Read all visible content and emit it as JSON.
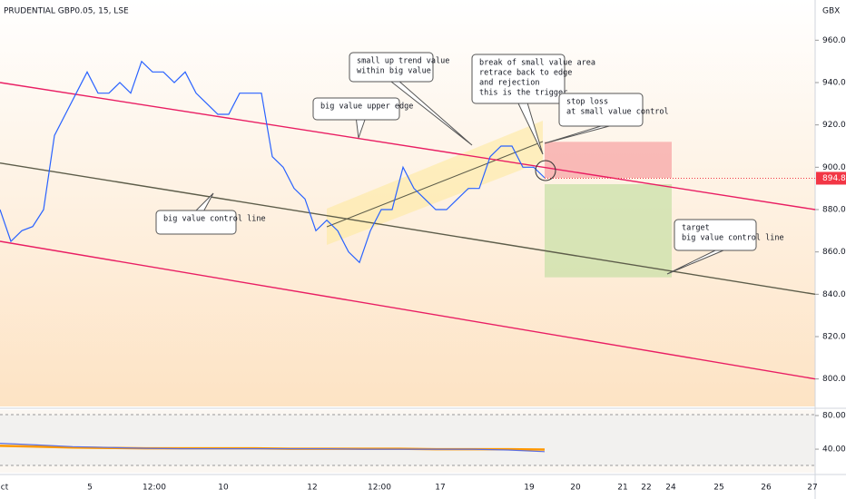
{
  "chart_data": [
    {
      "type": "line",
      "title": "PRUDENTIAL GBP0.05, 15, LSE",
      "unit": "GBX",
      "ylim": [
        787,
        979
      ],
      "yticks": [
        {
          "value": 960,
          "label": "960.0"
        },
        {
          "value": 940,
          "label": "940.0"
        },
        {
          "value": 920,
          "label": "920.0"
        },
        {
          "value": 900,
          "label": "900.0"
        },
        {
          "value": 880,
          "label": "880.0"
        },
        {
          "value": 860,
          "label": "860.0"
        },
        {
          "value": 840,
          "label": "840.0"
        },
        {
          "value": 820,
          "label": "820.0"
        },
        {
          "value": 800,
          "label": "800.0"
        }
      ],
      "xtick_labels": [
        "ct",
        "5",
        "12:00",
        "10",
        "12",
        "12:00",
        "17",
        "19",
        "20",
        "21",
        "22",
        "24",
        "25",
        "26",
        "27"
      ],
      "last_price": {
        "value": 894.8,
        "label": "894.8",
        "color": "#f23645"
      },
      "series": [
        {
          "color": "#2962ff",
          "values": [
            880,
            865,
            870,
            872,
            880,
            915,
            925,
            935,
            945,
            935,
            935,
            940,
            935,
            950,
            945,
            945,
            940,
            945,
            935,
            930,
            925,
            925,
            935,
            935,
            935,
            905,
            900,
            890,
            885,
            870,
            875,
            870,
            860,
            855,
            870,
            880,
            880,
            900,
            890,
            885,
            880,
            880,
            885,
            890,
            890,
            905,
            910,
            910,
            900,
            900,
            895
          ]
        }
      ],
      "trendlines": [
        {
          "color": "#e91e63",
          "values": [
            940,
            880
          ]
        },
        {
          "color": "#5d5d4a",
          "values": [
            902,
            840
          ]
        },
        {
          "color": "#e91e63",
          "values": [
            865,
            800
          ]
        }
      ],
      "zones": [
        {
          "color": "#f7a5a5",
          "values": [
            912,
            895
          ]
        },
        {
          "color": "#c9e0a8",
          "values": [
            892,
            848
          ]
        }
      ],
      "annotations": [
        [
          "big value control line"
        ],
        [
          "big value upper edge"
        ],
        [
          "small up trend value",
          "within big value"
        ],
        [
          "break of small value area",
          "retrace back to edge",
          "and rejection",
          "this is the trigger"
        ],
        [
          "stop loss",
          "at small value control"
        ],
        [
          "target",
          "big value control line"
        ]
      ]
    },
    {
      "type": "line",
      "ylim": [
        12,
        86.5
      ],
      "yticks": [
        {
          "value": 80,
          "label": "80.00"
        },
        {
          "value": 40,
          "label": "40.00"
        }
      ],
      "series": [
        {
          "color": "#ff9800",
          "values": [
            44,
            43,
            42,
            41.5,
            41,
            41,
            41,
            41,
            40.5,
            40.5,
            40.5,
            40.5,
            40,
            40,
            40,
            39.5
          ]
        },
        {
          "color": "#5b6ee1",
          "values": [
            47,
            45,
            43,
            42,
            41,
            40.5,
            40.5,
            40.5,
            40.5,
            40.5,
            40,
            40,
            40,
            40,
            39,
            37
          ]
        }
      ]
    }
  ]
}
